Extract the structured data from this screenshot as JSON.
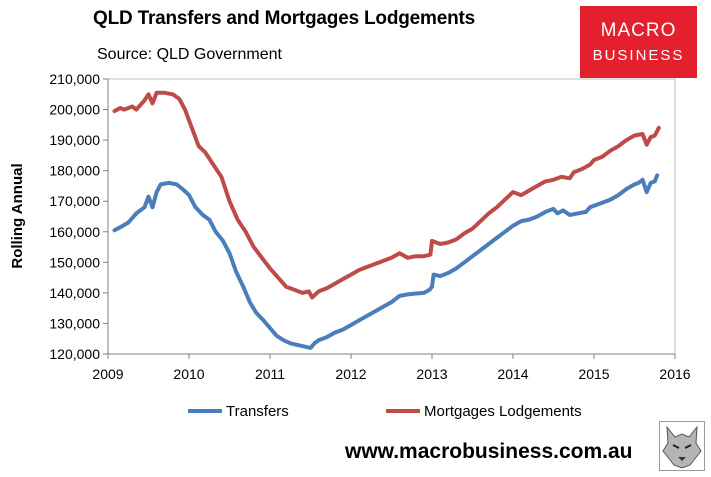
{
  "header": {
    "title": "QLD Transfers and Mortgages Lodgements",
    "source": "Source: QLD Government"
  },
  "logo": {
    "line1": "MACRO",
    "line2": "BUSINESS"
  },
  "footer": {
    "url": "www.macrobusiness.com.au"
  },
  "colors": {
    "transfers": "#4a7ebb",
    "mortgages": "#be4b48",
    "plot_border": "#bfbfbf"
  },
  "chart_data": {
    "type": "line",
    "title": "QLD Transfers and Mortgages Lodgements",
    "ylabel": "Rolling Annual",
    "xlabel": "",
    "xlim": [
      2009,
      2016
    ],
    "ylim": [
      120000,
      210000
    ],
    "x_ticks": [
      "2009",
      "2010",
      "2011",
      "2012",
      "2013",
      "2014",
      "2015",
      "2016"
    ],
    "y_ticks": [
      "120,000",
      "130,000",
      "140,000",
      "150,000",
      "160,000",
      "170,000",
      "180,000",
      "190,000",
      "200,000",
      "210,000"
    ],
    "legend_position": "bottom",
    "grid": false,
    "series": [
      {
        "name": "Transfers",
        "color": "#4a7ebb",
        "points": [
          [
            2009.08,
            160500
          ],
          [
            2009.15,
            161500
          ],
          [
            2009.25,
            163000
          ],
          [
            2009.35,
            166000
          ],
          [
            2009.45,
            168000
          ],
          [
            2009.5,
            171500
          ],
          [
            2009.55,
            168000
          ],
          [
            2009.6,
            173000
          ],
          [
            2009.65,
            175500
          ],
          [
            2009.75,
            176000
          ],
          [
            2009.85,
            175500
          ],
          [
            2009.92,
            174000
          ],
          [
            2010.0,
            172000
          ],
          [
            2010.08,
            168000
          ],
          [
            2010.17,
            165500
          ],
          [
            2010.25,
            164000
          ],
          [
            2010.33,
            160000
          ],
          [
            2010.42,
            157000
          ],
          [
            2010.5,
            153000
          ],
          [
            2010.58,
            147000
          ],
          [
            2010.67,
            142000
          ],
          [
            2010.75,
            137000
          ],
          [
            2010.83,
            133500
          ],
          [
            2010.92,
            131000
          ],
          [
            2011.0,
            128500
          ],
          [
            2011.08,
            126000
          ],
          [
            2011.17,
            124500
          ],
          [
            2011.25,
            123500
          ],
          [
            2011.33,
            123000
          ],
          [
            2011.42,
            122500
          ],
          [
            2011.5,
            122000
          ],
          [
            2011.55,
            123500
          ],
          [
            2011.6,
            124500
          ],
          [
            2011.7,
            125500
          ],
          [
            2011.8,
            127000
          ],
          [
            2011.9,
            128000
          ],
          [
            2012.0,
            129500
          ],
          [
            2012.1,
            131000
          ],
          [
            2012.2,
            132500
          ],
          [
            2012.3,
            134000
          ],
          [
            2012.4,
            135500
          ],
          [
            2012.5,
            137000
          ],
          [
            2012.6,
            139000
          ],
          [
            2012.7,
            139500
          ],
          [
            2012.8,
            139800
          ],
          [
            2012.9,
            140000
          ],
          [
            2012.97,
            141000
          ],
          [
            2013.0,
            142000
          ],
          [
            2013.02,
            146000
          ],
          [
            2013.1,
            145500
          ],
          [
            2013.2,
            146500
          ],
          [
            2013.3,
            148000
          ],
          [
            2013.4,
            150000
          ],
          [
            2013.5,
            152000
          ],
          [
            2013.6,
            154000
          ],
          [
            2013.7,
            156000
          ],
          [
            2013.8,
            158000
          ],
          [
            2013.9,
            160000
          ],
          [
            2014.0,
            162000
          ],
          [
            2014.1,
            163500
          ],
          [
            2014.2,
            164000
          ],
          [
            2014.3,
            165000
          ],
          [
            2014.4,
            166500
          ],
          [
            2014.5,
            167500
          ],
          [
            2014.55,
            166000
          ],
          [
            2014.62,
            167000
          ],
          [
            2014.7,
            165500
          ],
          [
            2014.8,
            166000
          ],
          [
            2014.9,
            166500
          ],
          [
            2014.95,
            168000
          ],
          [
            2015.0,
            168500
          ],
          [
            2015.1,
            169500
          ],
          [
            2015.2,
            170500
          ],
          [
            2015.3,
            172000
          ],
          [
            2015.4,
            174000
          ],
          [
            2015.5,
            175500
          ],
          [
            2015.55,
            176000
          ],
          [
            2015.6,
            177000
          ],
          [
            2015.65,
            173000
          ],
          [
            2015.7,
            176000
          ],
          [
            2015.75,
            176500
          ],
          [
            2015.78,
            178500
          ]
        ]
      },
      {
        "name": "Mortgages Lodgements",
        "color": "#be4b48",
        "points": [
          [
            2009.08,
            199500
          ],
          [
            2009.15,
            200500
          ],
          [
            2009.2,
            200000
          ],
          [
            2009.3,
            201000
          ],
          [
            2009.35,
            200000
          ],
          [
            2009.45,
            203000
          ],
          [
            2009.5,
            205000
          ],
          [
            2009.55,
            202000
          ],
          [
            2009.6,
            205500
          ],
          [
            2009.7,
            205500
          ],
          [
            2009.8,
            205000
          ],
          [
            2009.88,
            203500
          ],
          [
            2009.95,
            200000
          ],
          [
            2010.05,
            193000
          ],
          [
            2010.12,
            188000
          ],
          [
            2010.2,
            186000
          ],
          [
            2010.3,
            182000
          ],
          [
            2010.4,
            178000
          ],
          [
            2010.5,
            170000
          ],
          [
            2010.6,
            164000
          ],
          [
            2010.7,
            160000
          ],
          [
            2010.8,
            155000
          ],
          [
            2010.9,
            151500
          ],
          [
            2011.0,
            148000
          ],
          [
            2011.1,
            145000
          ],
          [
            2011.2,
            142000
          ],
          [
            2011.3,
            141000
          ],
          [
            2011.4,
            140000
          ],
          [
            2011.48,
            140500
          ],
          [
            2011.52,
            138500
          ],
          [
            2011.6,
            140500
          ],
          [
            2011.7,
            141500
          ],
          [
            2011.8,
            143000
          ],
          [
            2011.9,
            144500
          ],
          [
            2012.0,
            146000
          ],
          [
            2012.1,
            147500
          ],
          [
            2012.2,
            148500
          ],
          [
            2012.3,
            149500
          ],
          [
            2012.4,
            150500
          ],
          [
            2012.5,
            151500
          ],
          [
            2012.6,
            153000
          ],
          [
            2012.7,
            151500
          ],
          [
            2012.8,
            152000
          ],
          [
            2012.9,
            152000
          ],
          [
            2012.98,
            152500
          ],
          [
            2013.0,
            157000
          ],
          [
            2013.1,
            156000
          ],
          [
            2013.2,
            156500
          ],
          [
            2013.3,
            157500
          ],
          [
            2013.4,
            159500
          ],
          [
            2013.5,
            161000
          ],
          [
            2013.6,
            163500
          ],
          [
            2013.7,
            166000
          ],
          [
            2013.8,
            168000
          ],
          [
            2013.9,
            170500
          ],
          [
            2014.0,
            173000
          ],
          [
            2014.1,
            172000
          ],
          [
            2014.2,
            173500
          ],
          [
            2014.3,
            175000
          ],
          [
            2014.4,
            176500
          ],
          [
            2014.5,
            177000
          ],
          [
            2014.6,
            178000
          ],
          [
            2014.7,
            177500
          ],
          [
            2014.75,
            179500
          ],
          [
            2014.85,
            180500
          ],
          [
            2014.95,
            182000
          ],
          [
            2015.0,
            183500
          ],
          [
            2015.1,
            184500
          ],
          [
            2015.2,
            186500
          ],
          [
            2015.3,
            188000
          ],
          [
            2015.4,
            190000
          ],
          [
            2015.5,
            191500
          ],
          [
            2015.6,
            192000
          ],
          [
            2015.65,
            188500
          ],
          [
            2015.7,
            191000
          ],
          [
            2015.75,
            191500
          ],
          [
            2015.8,
            194000
          ]
        ]
      }
    ]
  }
}
